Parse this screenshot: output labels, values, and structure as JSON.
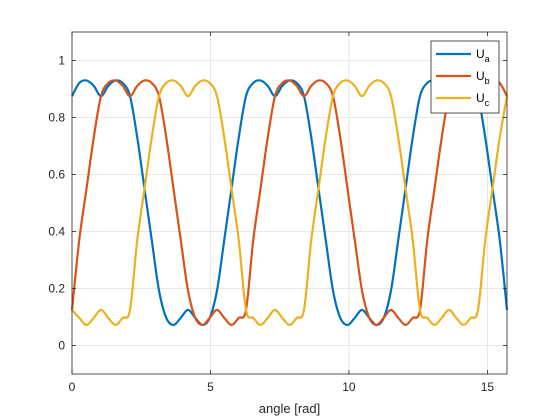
{
  "chart_data": {
    "type": "line",
    "title": "",
    "xlabel": "angle [rad]",
    "ylabel": "",
    "xlim": [
      0,
      15.708
    ],
    "ylim": [
      -0.1,
      1.1
    ],
    "xticks": [
      0,
      5,
      10,
      15
    ],
    "xtick_labels": [
      "0",
      "5",
      "10",
      "15"
    ],
    "yticks": [
      0,
      0.2,
      0.4,
      0.6,
      0.8,
      1
    ],
    "ytick_labels": [
      "0",
      "0.2",
      "0.4",
      "0.6",
      "0.8",
      "1"
    ],
    "grid": true,
    "legend_position": "top-right",
    "x_step": 0.261799,
    "series": [
      {
        "name": "U_a",
        "label_main": "U",
        "label_sub": "a",
        "color": "#0072BD",
        "values": [
          0.875,
          0.921,
          0.93,
          0.911,
          0.875,
          0.911,
          0.93,
          0.921,
          0.875,
          0.73,
          0.55,
          0.37,
          0.193,
          0.097,
          0.072,
          0.097,
          0.125,
          0.097,
          0.072,
          0.097,
          0.193,
          0.37,
          0.55,
          0.73,
          0.875,
          0.921,
          0.93,
          0.911,
          0.875,
          0.911,
          0.93,
          0.921,
          0.875,
          0.73,
          0.55,
          0.37,
          0.193,
          0.097,
          0.072,
          0.097,
          0.125,
          0.097,
          0.072,
          0.097,
          0.193,
          0.37,
          0.55,
          0.73,
          0.875,
          0.921,
          0.93,
          0.911,
          0.875,
          0.911,
          0.93,
          0.921,
          0.875,
          0.73,
          0.55,
          0.37,
          0.125
        ]
      },
      {
        "name": "U_b",
        "label_main": "U",
        "label_sub": "b",
        "color": "#D95319",
        "values": [
          0.125,
          0.37,
          0.55,
          0.73,
          0.875,
          0.921,
          0.93,
          0.911,
          0.875,
          0.911,
          0.93,
          0.921,
          0.875,
          0.73,
          0.55,
          0.37,
          0.193,
          0.097,
          0.072,
          0.097,
          0.125,
          0.097,
          0.072,
          0.097,
          0.125,
          0.37,
          0.55,
          0.73,
          0.875,
          0.921,
          0.93,
          0.911,
          0.875,
          0.911,
          0.93,
          0.921,
          0.875,
          0.73,
          0.55,
          0.37,
          0.193,
          0.097,
          0.072,
          0.097,
          0.125,
          0.097,
          0.072,
          0.097,
          0.125,
          0.37,
          0.55,
          0.73,
          0.875,
          0.921,
          0.93,
          0.911,
          0.875,
          0.911,
          0.93,
          0.921,
          0.875
        ]
      },
      {
        "name": "U_c",
        "label_main": "U",
        "label_sub": "c",
        "color": "#EDB120",
        "values": [
          0.125,
          0.097,
          0.072,
          0.097,
          0.125,
          0.097,
          0.072,
          0.097,
          0.125,
          0.37,
          0.55,
          0.73,
          0.875,
          0.921,
          0.93,
          0.911,
          0.875,
          0.911,
          0.93,
          0.921,
          0.875,
          0.73,
          0.55,
          0.37,
          0.125,
          0.097,
          0.072,
          0.097,
          0.125,
          0.097,
          0.072,
          0.097,
          0.125,
          0.37,
          0.55,
          0.73,
          0.875,
          0.921,
          0.93,
          0.911,
          0.875,
          0.911,
          0.93,
          0.921,
          0.875,
          0.73,
          0.55,
          0.37,
          0.125,
          0.097,
          0.072,
          0.097,
          0.125,
          0.097,
          0.072,
          0.097,
          0.125,
          0.37,
          0.55,
          0.73,
          0.875
        ]
      }
    ]
  }
}
